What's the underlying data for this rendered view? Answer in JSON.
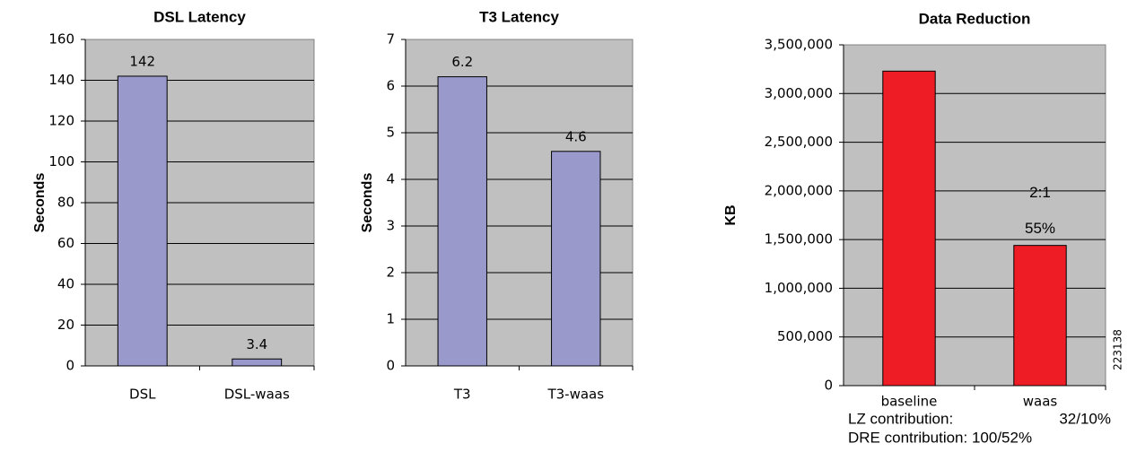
{
  "chart_data": [
    {
      "type": "bar",
      "title": "DSL Latency",
      "y_label": "Seconds",
      "categories": [
        "DSL",
        "DSL-waas"
      ],
      "values": [
        142,
        3.4
      ],
      "color": "#9999cc",
      "ylim": [
        0,
        160
      ],
      "yticks": [
        0,
        20,
        40,
        60,
        80,
        100,
        120,
        140,
        160
      ],
      "grid": true,
      "data_labels": true
    },
    {
      "type": "bar",
      "title": "T3 Latency",
      "y_label": "Seconds",
      "categories": [
        "T3",
        "T3-waas"
      ],
      "values": [
        6.2,
        4.6
      ],
      "color": "#9999cc",
      "ylim": [
        0,
        7
      ],
      "yticks": [
        0,
        1,
        2,
        3,
        4,
        5,
        6,
        7
      ],
      "grid": true,
      "data_labels": true
    },
    {
      "type": "bar",
      "title": "Data Reduction",
      "y_label": "KB",
      "categories": [
        "baseline",
        "waas"
      ],
      "values": [
        3230000,
        1440000
      ],
      "color": "#ee1c25",
      "ylim": [
        0,
        3500000
      ],
      "yticks": [
        0,
        {
          "value": 500000,
          "label": "500,000"
        },
        {
          "value": 1000000,
          "label": "1,000,000"
        },
        {
          "value": 1500000,
          "label": "1,500,000"
        },
        {
          "value": 2000000,
          "label": "2,000,000"
        },
        {
          "value": 2500000,
          "label": "2,500,000"
        },
        {
          "value": 3000000,
          "label": "3,000,000"
        },
        {
          "value": 3500000,
          "label": "3,500,000"
        }
      ],
      "grid": true,
      "data_labels": false,
      "annotations": [
        "2:1",
        "55%"
      ],
      "side_label": "223138",
      "notes": [
        {
          "label": "LZ contribution:",
          "value": "32/10%"
        },
        {
          "label": "DRE contribution: 100/52%"
        }
      ]
    }
  ]
}
